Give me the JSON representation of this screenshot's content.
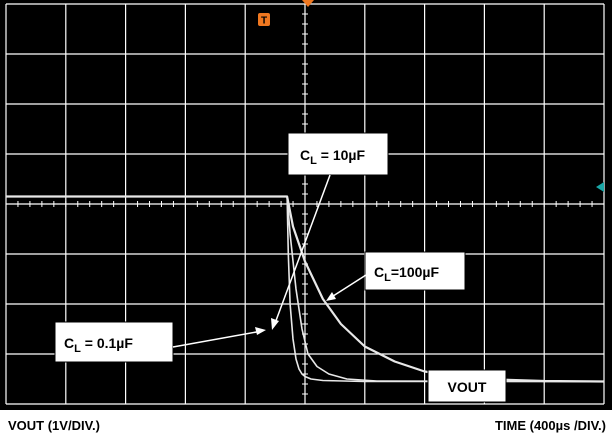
{
  "chart_data": {
    "type": "line",
    "background_color": "#000000",
    "grid": true,
    "grid_color": "#ffffff",
    "trace_color": "#e8e8e8",
    "x_per_div": 400,
    "x_unit": "µs",
    "y_per_div": 1,
    "y_unit": "V",
    "x_range_div": [
      0,
      10
    ],
    "y_range_div": [
      0,
      8
    ],
    "series": [
      {
        "load": "C_L = 0.1µF",
        "x_div": [
          0,
          4.7,
          4.72,
          4.75,
          4.8,
          4.85,
          4.9,
          4.95,
          5.0,
          5.1,
          5.3,
          6.0,
          10.0
        ],
        "y_div": [
          4.15,
          4.15,
          3.0,
          2.0,
          1.3,
          0.9,
          0.7,
          0.6,
          0.55,
          0.5,
          0.47,
          0.45,
          0.45
        ]
      },
      {
        "load": "C_L = 10µF",
        "x_div": [
          0,
          4.7,
          4.75,
          4.85,
          4.95,
          5.05,
          5.2,
          5.4,
          5.7,
          6.2,
          10.0
        ],
        "y_div": [
          4.15,
          4.15,
          3.4,
          2.3,
          1.5,
          1.0,
          0.75,
          0.6,
          0.5,
          0.46,
          0.45
        ]
      },
      {
        "load": "C_L=100µF",
        "x_div": [
          0,
          4.7,
          4.8,
          5.0,
          5.3,
          5.6,
          6.0,
          6.5,
          7.0,
          7.5,
          8.0,
          9.0,
          10.0
        ],
        "y_div": [
          4.15,
          4.15,
          3.55,
          2.85,
          2.1,
          1.6,
          1.15,
          0.85,
          0.65,
          0.56,
          0.5,
          0.46,
          0.45
        ]
      }
    ],
    "annotations": {
      "cl_10uf": "C",
      "cl_10uf_sub": "L",
      "cl_10uf_rest": " = 10µF",
      "cl_100uf": "C",
      "cl_100uf_sub": "L",
      "cl_100uf_rest": "=100µF",
      "cl_01uf": "C",
      "cl_01uf_sub": "L",
      "cl_01uf_rest": " = 0.1µF",
      "channel_label": "VOUT"
    },
    "trigger_marker": "T",
    "trigger_marker_color": "#f07820",
    "ground_marker_color": "#1aa6a6",
    "ylabel": "VOUT (1V/DIV.)",
    "xlabel": "TIME (400µs /DIV.)"
  }
}
